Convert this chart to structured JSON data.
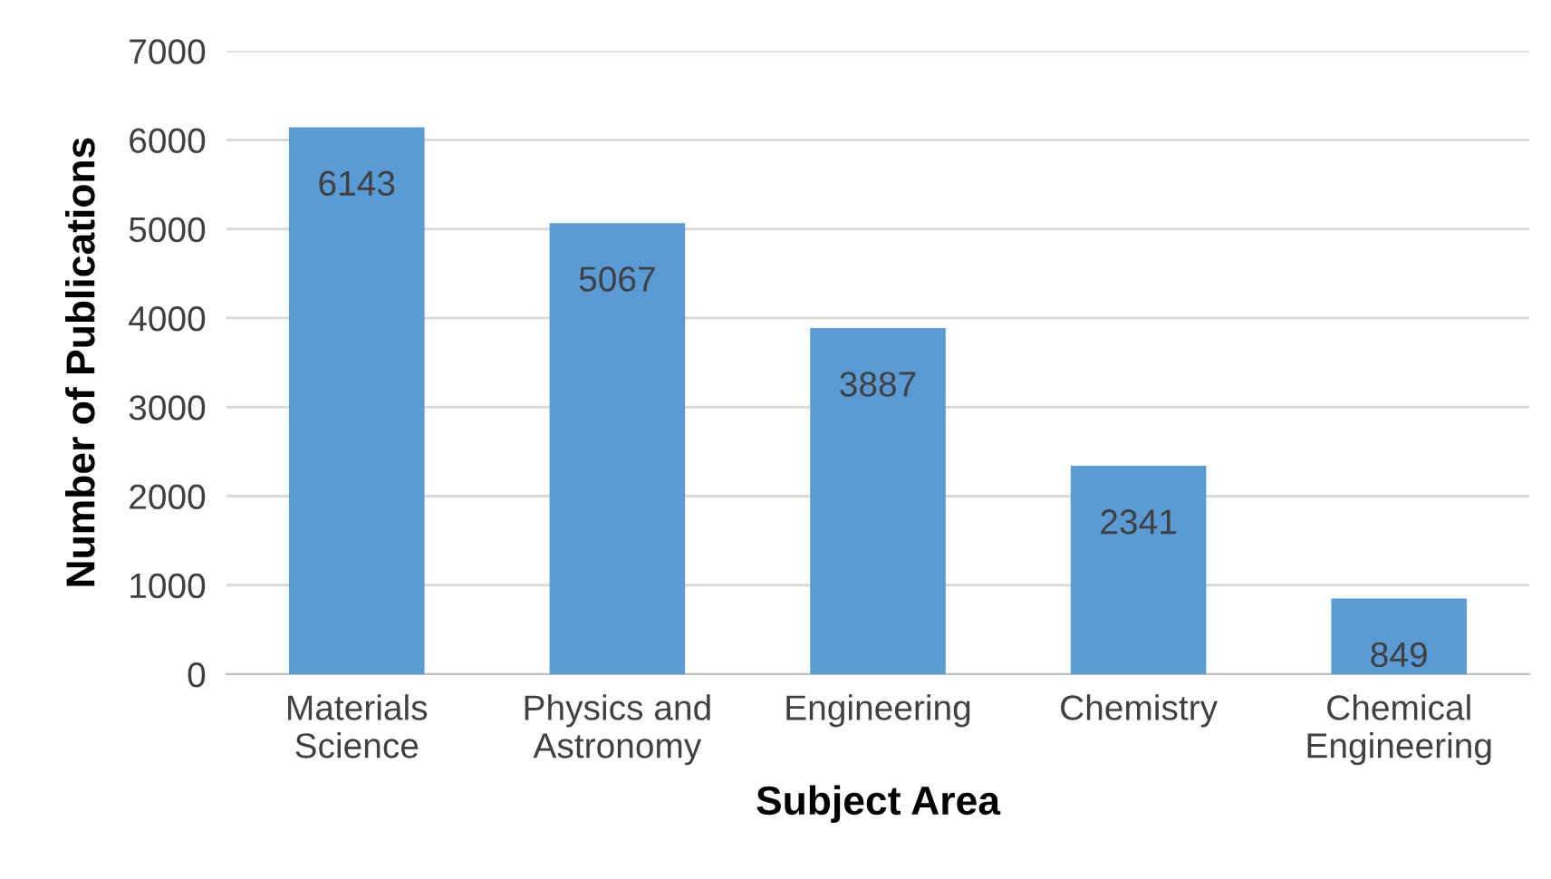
{
  "chart_data": {
    "type": "bar",
    "xlabel": "Subject Area",
    "ylabel": "Number of Publications",
    "categories": [
      "Materials\nScience",
      "Physics and\nAstronomy",
      "Engineering",
      "Chemistry",
      "Chemical\nEngineering"
    ],
    "values": [
      6143,
      5067,
      3887,
      2341,
      849
    ],
    "color": "#5b9bd5",
    "ylim": [
      0,
      7000
    ],
    "yticks": [
      0,
      1000,
      2000,
      3000,
      4000,
      5000,
      6000,
      7000
    ],
    "grid": "y",
    "data_labels": true
  }
}
